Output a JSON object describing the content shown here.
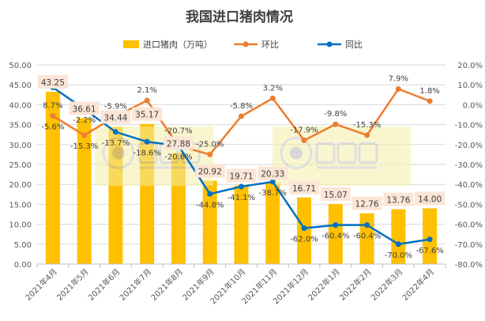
{
  "chart_data": {
    "type": "bar+line",
    "title": "我国进口猪肉情况",
    "categories": [
      "2021年4月",
      "2021年5月",
      "2021年6月",
      "2021年7月",
      "2021年8月",
      "2021年9月",
      "2021年10月",
      "2021年11月",
      "2021年12月",
      "2022年1月",
      "2022年2月",
      "2022年3月",
      "2022年4月"
    ],
    "series": [
      {
        "name": "进口猪肉（万吨）",
        "kind": "bar",
        "axis": "left",
        "color": "#FFC000",
        "values": [
          43.25,
          36.61,
          34.44,
          35.17,
          27.88,
          20.92,
          19.71,
          20.33,
          16.71,
          15.07,
          12.76,
          13.76,
          14.0
        ]
      },
      {
        "name": "环比",
        "kind": "line",
        "axis": "right",
        "color": "#ED7D31",
        "values": [
          -5.6,
          -15.3,
          -5.9,
          2.1,
          -20.7,
          -25.0,
          -5.8,
          3.2,
          -17.9,
          -9.8,
          -15.3,
          7.9,
          1.8
        ]
      },
      {
        "name": "同比",
        "kind": "line",
        "axis": "right",
        "color": "#0070C0",
        "values": [
          8.7,
          -2.2,
          -13.7,
          -18.6,
          -20.6,
          -44.8,
          -41.1,
          -38.7,
          -62.0,
          -60.4,
          -60.4,
          -70.0,
          -67.6
        ]
      }
    ],
    "left_axis": {
      "range": [
        0,
        50
      ],
      "step": 5,
      "ticks": [
        "0.00",
        "5.00",
        "10.00",
        "15.00",
        "20.00",
        "25.00",
        "30.00",
        "35.00",
        "40.00",
        "45.00",
        "50.00"
      ]
    },
    "right_axis": {
      "range": [
        -80,
        20
      ],
      "step": 10,
      "ticks": [
        "-80.0%",
        "-70.0%",
        "-60.0%",
        "-50.0%",
        "-40.0%",
        "-30.0%",
        "-20.0%",
        "-10.0%",
        "0.0%",
        "10.0%",
        "20.0%"
      ]
    },
    "grid": true,
    "legend_position": "top",
    "bar_labels": [
      "43.25",
      "36.61",
      "34.44",
      "35.17",
      "27.88",
      "20.92",
      "19.71",
      "20.33",
      "16.71",
      "15.07",
      "12.76",
      "13.76",
      "14.00"
    ],
    "mom_labels": [
      "-5.6%",
      "-15.3%",
      "-5.9%",
      "2.1%",
      "-20.7%",
      "-25.0%",
      "-5.8%",
      "3.2%",
      "-17.9%",
      "-9.8%",
      "-15.3%",
      "7.9%",
      "1.8%"
    ],
    "yoy_labels": [
      "8.7%",
      "-2.2%",
      "-13.7%",
      "-18.6%",
      "-20.6%",
      "-44.8%",
      "-41.1%",
      "-38.7%",
      "-62.0%",
      "-60.4%",
      "-60.4%",
      "-70.0%",
      "-67.6%"
    ]
  },
  "watermark": {
    "brand": "大畜牧",
    "url": "www.dxumu.com"
  }
}
